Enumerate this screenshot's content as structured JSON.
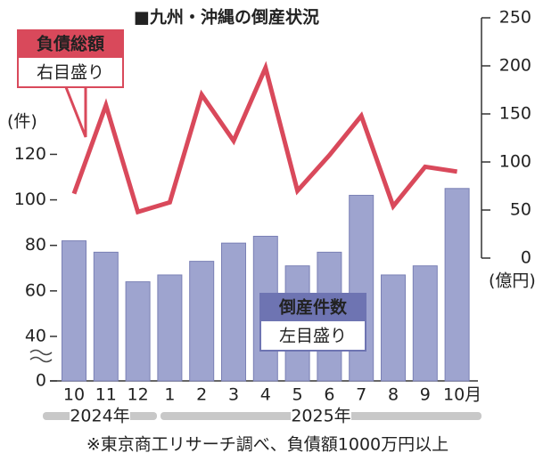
{
  "chart_data": {
    "type": "bar",
    "title": "■九州・沖縄の倒産状況",
    "categories": [
      "10",
      "11",
      "12",
      "1",
      "2",
      "3",
      "4",
      "5",
      "6",
      "7",
      "8",
      "9",
      "10月"
    ],
    "periods": [
      "2024年",
      "2025年"
    ],
    "series": [
      {
        "name": "倒産件数",
        "scale_label": "左目盛り",
        "type": "bar",
        "color": "#9ea4cf",
        "legend_color": "#6e74b2",
        "values": [
          82,
          77,
          64,
          67,
          73,
          81,
          84,
          71,
          77,
          102,
          67,
          71,
          105
        ]
      },
      {
        "name": "負債総額",
        "scale_label": "右目盛り",
        "type": "line",
        "axis": "y2",
        "color": "#d9495b",
        "values": [
          67,
          159,
          48,
          58,
          170,
          122,
          198,
          70,
          107,
          148,
          54,
          95,
          90
        ]
      }
    ],
    "ylabel": "(件)",
    "y2label": "(億円)",
    "ylim": [
      0,
      180
    ],
    "ybreak": 40,
    "yticks": [
      0,
      40,
      60,
      80,
      100,
      120
    ],
    "y2lim": [
      0,
      250
    ],
    "y2ticks": [
      0,
      50,
      100,
      150,
      200,
      250
    ],
    "note": "※東京商工リサーチ調べ、負債額1000万円以上"
  }
}
